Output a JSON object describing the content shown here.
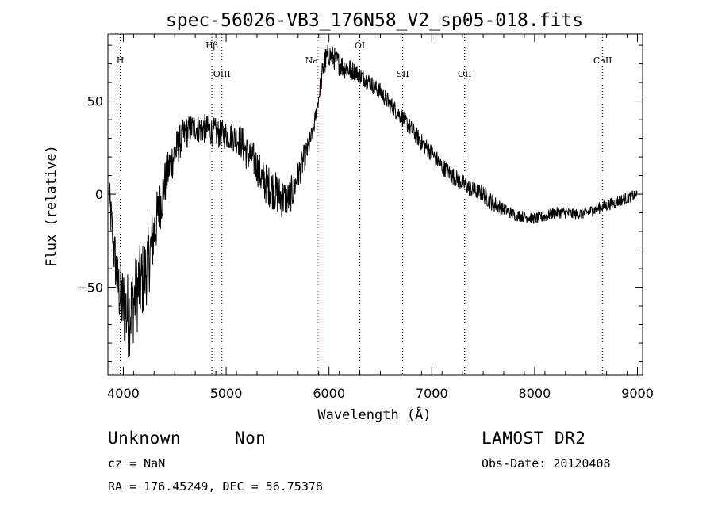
{
  "chart_data": {
    "type": "line",
    "title": "spec-56026-VB3_176N58_V2_sp05-018.fits",
    "xlabel": "Wavelength (Å)",
    "ylabel": "Flux (relative)",
    "xlim": [
      3850,
      9050
    ],
    "ylim": [
      -97,
      86
    ],
    "xticks": [
      4000,
      5000,
      6000,
      7000,
      8000,
      9000
    ],
    "yticks": [
      -50,
      0,
      50
    ],
    "xtick_labels": [
      "4000",
      "5000",
      "6000",
      "7000",
      "8000",
      "9000"
    ],
    "ytick_labels": [
      "−50",
      "0",
      "50"
    ],
    "grid": false,
    "lines": [
      {
        "label": "H",
        "wavelength": 3970,
        "row": 1
      },
      {
        "label": "Hβ",
        "wavelength": 4861,
        "row": 0
      },
      {
        "label": "OIII",
        "wavelength": 4959,
        "row": 2
      },
      {
        "label": "Na",
        "wavelength": 5893,
        "row": 1
      },
      {
        "label": "OI",
        "wavelength": 6300,
        "row": 0
      },
      {
        "label": "SII",
        "wavelength": 6717,
        "row": 2
      },
      {
        "label": "OII",
        "wavelength": 7320,
        "row": 2
      },
      {
        "label": "CaII",
        "wavelength": 8662,
        "row": 1
      }
    ],
    "series": [
      {
        "x": [
          3860,
          3900,
          3950,
          4000,
          4050,
          4100,
          4150,
          4200,
          4250,
          4300,
          4350,
          4400,
          4450,
          4500,
          4550,
          4600,
          4650,
          4700,
          4750,
          4800,
          4850,
          4900,
          4950,
          5000,
          5050,
          5100,
          5150,
          5200,
          5250,
          5300,
          5350,
          5400,
          5450,
          5500,
          5550,
          5600,
          5650,
          5700,
          5750,
          5800,
          5850,
          5900,
          5950,
          6000,
          6050,
          6100,
          6150,
          6200,
          6250,
          6300,
          6350,
          6400,
          6450,
          6500,
          6600,
          6700,
          6800,
          6900,
          7000,
          7100,
          7200,
          7300,
          7400,
          7500,
          7600,
          7700,
          7800,
          7900,
          8000,
          8100,
          8200,
          8300,
          8400,
          8500,
          8600,
          8700,
          8800,
          8900,
          9000
        ],
        "y": [
          0,
          -25,
          -50,
          -60,
          -65,
          -58,
          -50,
          -45,
          -35,
          -20,
          -8,
          5,
          15,
          22,
          28,
          32,
          35,
          36,
          35,
          35,
          34,
          33,
          32,
          32,
          31,
          30,
          28,
          22,
          20,
          15,
          8,
          5,
          3,
          0,
          -2,
          -3,
          2,
          10,
          18,
          25,
          35,
          52,
          70,
          75,
          73,
          70,
          68,
          67,
          66,
          64,
          62,
          60,
          57,
          55,
          48,
          42,
          35,
          28,
          22,
          15,
          10,
          6,
          2,
          0,
          -5,
          -8,
          -11,
          -12,
          -13,
          -12,
          -10,
          -10,
          -11,
          -10,
          -8,
          -6,
          -4,
          -2,
          0
        ],
        "noise": [
          7,
          9,
          10,
          14,
          15,
          14,
          14,
          13,
          12,
          11,
          9,
          8,
          7,
          7,
          6,
          6,
          5,
          5,
          5,
          5,
          5,
          5,
          5,
          5,
          5,
          5,
          6,
          6,
          6,
          6,
          7,
          7,
          7,
          7,
          7,
          6,
          6,
          5,
          5,
          4,
          3,
          3,
          5,
          4,
          4,
          4,
          4,
          4,
          3,
          3,
          3,
          3,
          3,
          3,
          3,
          3,
          3,
          3,
          3,
          3,
          3,
          3,
          3,
          3,
          3,
          2,
          2,
          2,
          2,
          2,
          2,
          2,
          2,
          2,
          2,
          2,
          2,
          2,
          2
        ],
        "color": "#000000"
      }
    ],
    "marker_color": "#000000",
    "red_marker_color": "#cc3333"
  },
  "footer": {
    "class_label": "Unknown",
    "subclass_label": "Non",
    "survey": "LAMOST DR2",
    "redshift": "cz = NaN",
    "obs_date": "Obs-Date: 20120408",
    "coords": "RA = 176.45249, DEC =  56.75378"
  }
}
